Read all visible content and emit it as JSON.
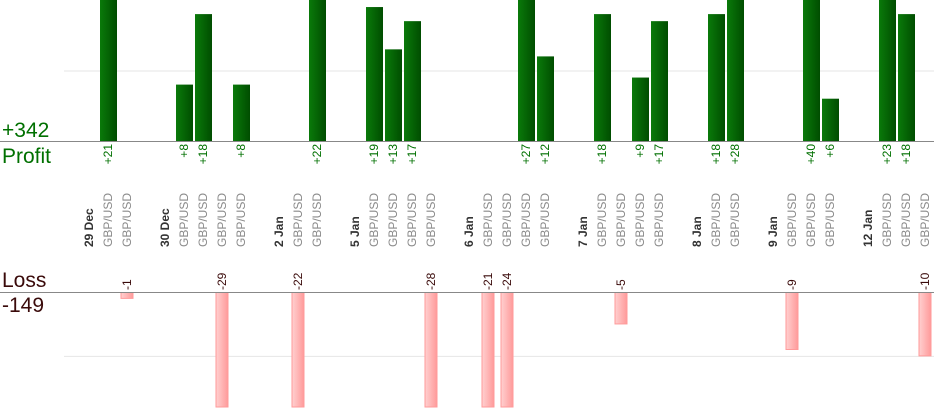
{
  "summary": {
    "profit_total": "+342",
    "profit_label": "Profit",
    "loss_label": "Loss",
    "loss_total": "-149"
  },
  "colors": {
    "profit_bar": "#006400",
    "profit_text": "#007000",
    "loss_bar": "#ffb0b0",
    "loss_text": "#3a0a0a",
    "date_text": "#333333",
    "pair_text": "#8a8a8a"
  },
  "chart_data": {
    "type": "bar",
    "profit_ylim": [
      0,
      20
    ],
    "loss_ylim": [
      -18,
      0
    ],
    "grid": true,
    "groups": [
      {
        "date": "29 Dec",
        "trades": [
          {
            "pair": "GBP/USD",
            "value": 21,
            "label": "+21"
          },
          {
            "pair": "GBP/USD",
            "value": -1,
            "label": "-1"
          }
        ]
      },
      {
        "date": "30 Dec",
        "trades": [
          {
            "pair": "GBP/USD",
            "value": 8,
            "label": "+8"
          },
          {
            "pair": "GBP/USD",
            "value": 18,
            "label": "+18"
          },
          {
            "pair": "GBP/USD",
            "value": -29,
            "label": "-29"
          },
          {
            "pair": "GBP/USD",
            "value": 8,
            "label": "+8"
          }
        ]
      },
      {
        "date": "2 Jan",
        "trades": [
          {
            "pair": "GBP/USD",
            "value": -22,
            "label": "-22"
          },
          {
            "pair": "GBP/USD",
            "value": 22,
            "label": "+22"
          }
        ]
      },
      {
        "date": "5 Jan",
        "trades": [
          {
            "pair": "GBP/USD",
            "value": 19,
            "label": "+19"
          },
          {
            "pair": "GBP/USD",
            "value": 13,
            "label": "+13"
          },
          {
            "pair": "GBP/USD",
            "value": 17,
            "label": "+17"
          },
          {
            "pair": "GBP/USD",
            "value": -28,
            "label": "-28"
          }
        ]
      },
      {
        "date": "6 Jan",
        "trades": [
          {
            "pair": "GBP/USD",
            "value": -21,
            "label": "-21"
          },
          {
            "pair": "GBP/USD",
            "value": -24,
            "label": "-24"
          },
          {
            "pair": "GBP/USD",
            "value": 27,
            "label": "+27"
          },
          {
            "pair": "GBP/USD",
            "value": 12,
            "label": "+12"
          }
        ]
      },
      {
        "date": "7 Jan",
        "trades": [
          {
            "pair": "GBP/USD",
            "value": 18,
            "label": "+18"
          },
          {
            "pair": "GBP/USD",
            "value": -5,
            "label": "-5"
          },
          {
            "pair": "GBP/USD",
            "value": 9,
            "label": "+9"
          },
          {
            "pair": "GBP/USD",
            "value": 17,
            "label": "+17"
          }
        ]
      },
      {
        "date": "8 Jan",
        "trades": [
          {
            "pair": "GBP/USD",
            "value": 18,
            "label": "+18"
          },
          {
            "pair": "GBP/USD",
            "value": 28,
            "label": "+28"
          }
        ]
      },
      {
        "date": "9 Jan",
        "trades": [
          {
            "pair": "GBP/USD",
            "value": -9,
            "label": "-9"
          },
          {
            "pair": "GBP/USD",
            "value": 40,
            "label": "+40"
          },
          {
            "pair": "GBP/USD",
            "value": 6,
            "label": "+6"
          }
        ]
      },
      {
        "date": "12 Jan",
        "trades": [
          {
            "pair": "GBP/USD",
            "value": 23,
            "label": "+23"
          },
          {
            "pair": "GBP/USD",
            "value": 18,
            "label": "+18"
          },
          {
            "pair": "GBP/USD",
            "value": -10,
            "label": "-10"
          }
        ]
      }
    ]
  }
}
